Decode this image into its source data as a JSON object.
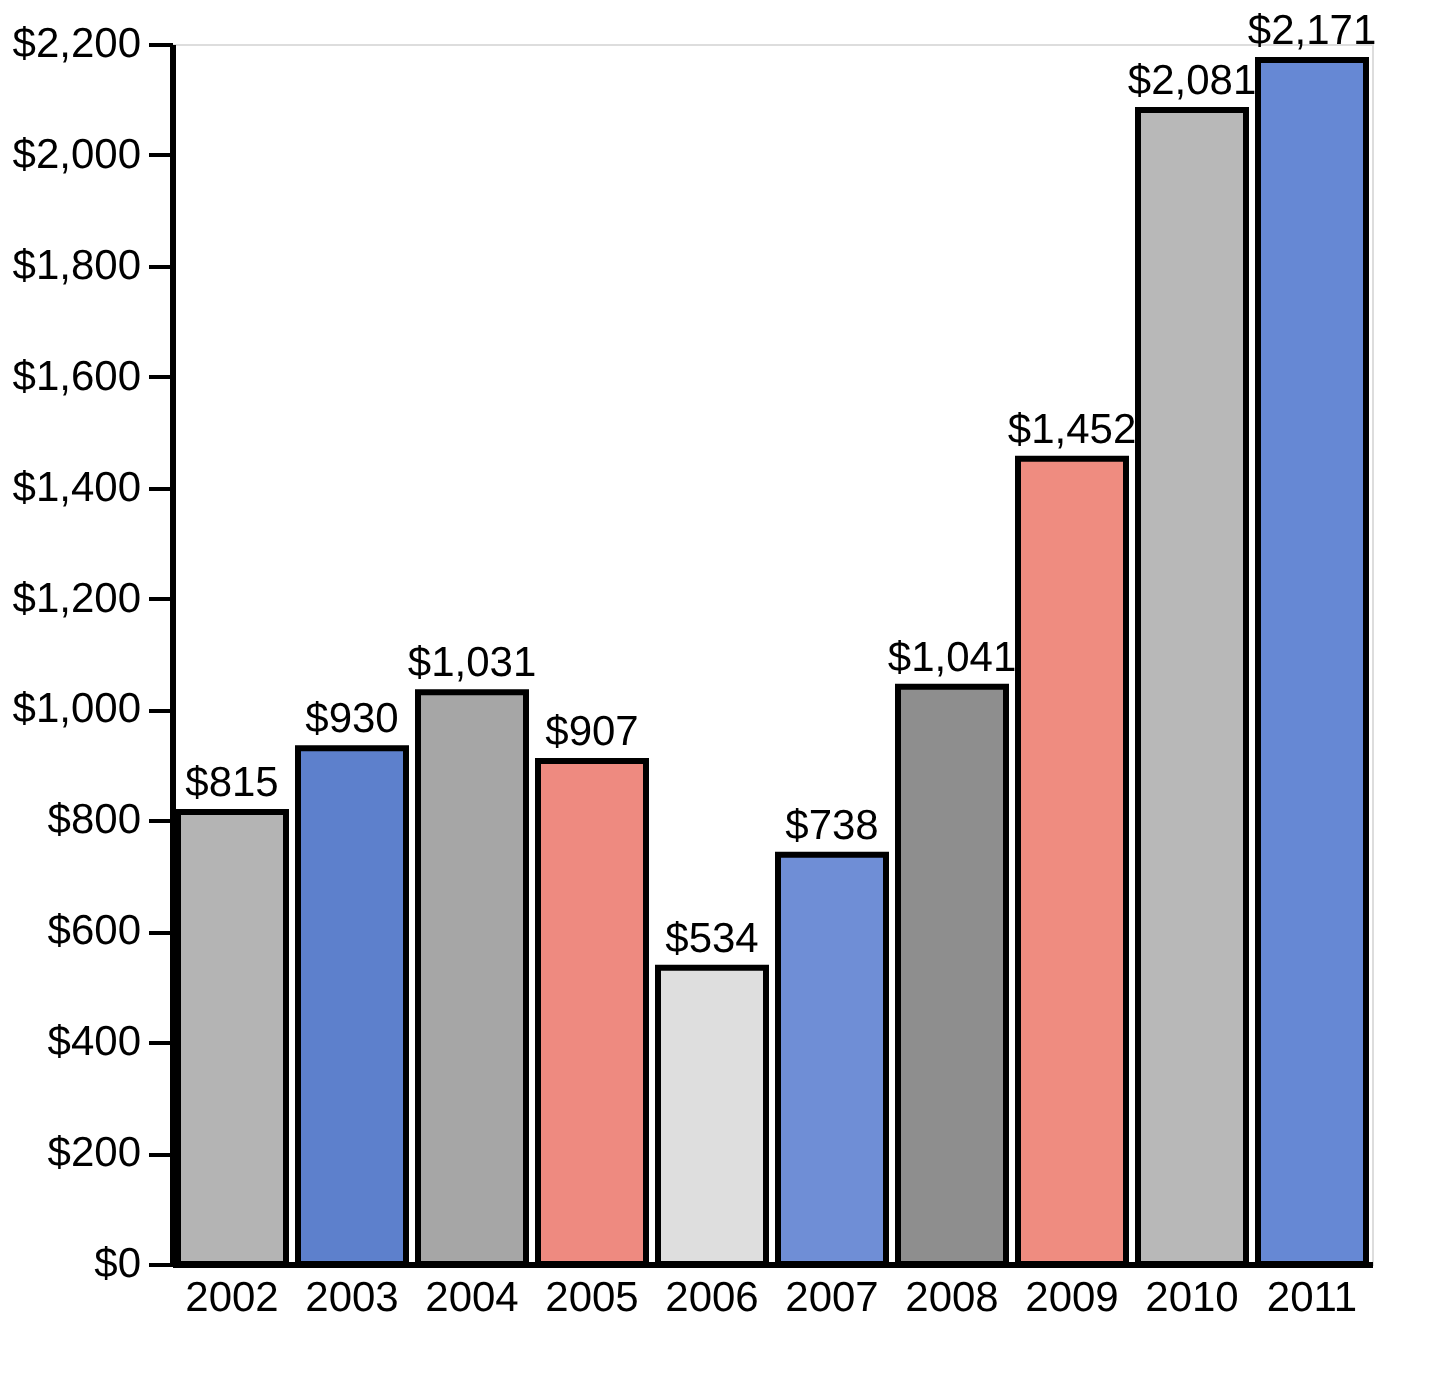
{
  "chart_data": {
    "type": "bar",
    "categories": [
      "2002",
      "2003",
      "2004",
      "2005",
      "2006",
      "2007",
      "2008",
      "2009",
      "2010",
      "2011"
    ],
    "values": [
      815,
      930,
      1031,
      907,
      534,
      738,
      1041,
      1452,
      2081,
      2171
    ],
    "colors": [
      "#b4b4b4",
      "#5d80cc",
      "#a6a6a6",
      "#ee8a80",
      "#dedede",
      "#6f8ed6",
      "#8e8e8e",
      "#ef8c80",
      "#b8b8b8",
      "#6688d4"
    ],
    "value_labels": [
      "$815",
      "$930",
      "$1,031",
      "$907",
      "$534",
      "$738",
      "$1,041",
      "$1,452",
      "$2,081",
      "$2,171"
    ],
    "ylim": [
      0,
      2200
    ],
    "yticks": [
      {
        "value": 0,
        "label": "$0"
      },
      {
        "value": 200,
        "label": "$200"
      },
      {
        "value": 400,
        "label": "$400"
      },
      {
        "value": 600,
        "label": "$600"
      },
      {
        "value": 800,
        "label": "$800"
      },
      {
        "value": 1000,
        "label": "$1,000"
      },
      {
        "value": 1200,
        "label": "$1,200"
      },
      {
        "value": 1400,
        "label": "$1,400"
      },
      {
        "value": 1600,
        "label": "$1,600"
      },
      {
        "value": 1800,
        "label": "$1,800"
      },
      {
        "value": 2000,
        "label": "$2,000"
      },
      {
        "value": 2200,
        "label": "$2,200"
      }
    ],
    "grid": false
  }
}
